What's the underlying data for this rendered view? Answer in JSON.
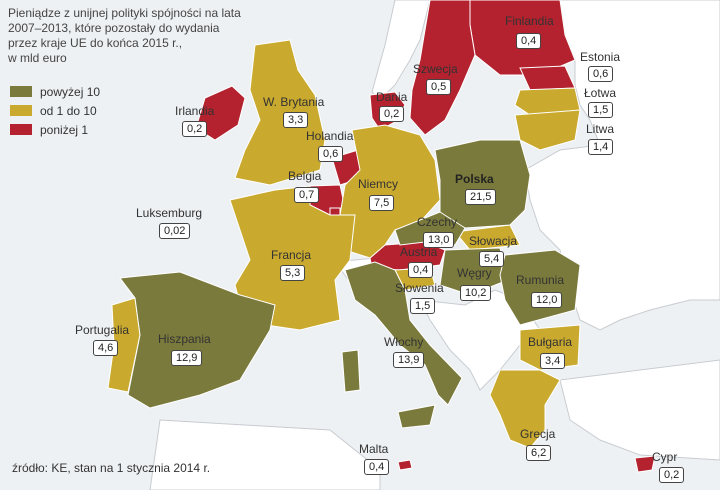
{
  "title_lines": [
    "Pieniądze z unijnej polityki spójności na lata",
    "2007–2013, które pozostały do wydania",
    "przez kraje UE do końca 2015 r.,",
    "w mld euro"
  ],
  "legend": [
    {
      "label": "powyżej 10",
      "color": "#7a7a3c"
    },
    {
      "label": "od 1 do 10",
      "color": "#c9a92e"
    },
    {
      "label": "poniżej 1",
      "color": "#b3222e"
    }
  ],
  "source": "źródło: KE, stan na 1 stycznia 2014 r.",
  "colors": {
    "sea": "#eef1f4",
    "non_eu": "#ffffff",
    "border": "#c8ccd0"
  },
  "countries": [
    {
      "id": "finlandia",
      "name": "Finlandia",
      "value": "0,4",
      "category": "poniżej 1"
    },
    {
      "id": "szwecja",
      "name": "Szwecja",
      "value": "0,5",
      "category": "poniżej 1"
    },
    {
      "id": "estonia",
      "name": "Estonia",
      "value": "0,6",
      "category": "poniżej 1"
    },
    {
      "id": "lotwa",
      "name": "Łotwa",
      "value": "1,5",
      "category": "od 1 do 10"
    },
    {
      "id": "litwa",
      "name": "Litwa",
      "value": "1,4",
      "category": "od 1 do 10"
    },
    {
      "id": "irlandia",
      "name": "Irlandia",
      "value": "0,2",
      "category": "poniżej 1"
    },
    {
      "id": "wbrytania",
      "name": "W. Brytania",
      "value": "3,3",
      "category": "od 1 do 10"
    },
    {
      "id": "dania",
      "name": "Dania",
      "value": "0,2",
      "category": "poniżej 1"
    },
    {
      "id": "holandia",
      "name": "Holandia",
      "value": "0,6",
      "category": "poniżej 1"
    },
    {
      "id": "belgia",
      "name": "Belgia",
      "value": "0,7",
      "category": "poniżej 1"
    },
    {
      "id": "niemcy",
      "name": "Niemcy",
      "value": "7,5",
      "category": "od 1 do 10"
    },
    {
      "id": "polska",
      "name": "Polska",
      "value": "21,5",
      "category": "powyżej 10"
    },
    {
      "id": "luksemburg",
      "name": "Luksemburg",
      "value": "0,02",
      "category": "poniżej 1"
    },
    {
      "id": "czechy",
      "name": "Czechy",
      "value": "13,0",
      "category": "powyżej 10"
    },
    {
      "id": "slowacja",
      "name": "Słowacja",
      "value": "5,4",
      "category": "od 1 do 10"
    },
    {
      "id": "austria",
      "name": "Austria",
      "value": "0,4",
      "category": "poniżej 1"
    },
    {
      "id": "wegry",
      "name": "Węgry",
      "value": "10,2",
      "category": "powyżej 10"
    },
    {
      "id": "francja",
      "name": "Francja",
      "value": "5,3",
      "category": "od 1 do 10"
    },
    {
      "id": "slowenia",
      "name": "Słowenia",
      "value": "1,5",
      "category": "od 1 do 10"
    },
    {
      "id": "rumunia",
      "name": "Rumunia",
      "value": "12,0",
      "category": "powyżej 10"
    },
    {
      "id": "portugalia",
      "name": "Portugalia",
      "value": "4,6",
      "category": "od 1 do 10"
    },
    {
      "id": "hiszpania",
      "name": "Hiszpania",
      "value": "12,9",
      "category": "powyżej 10"
    },
    {
      "id": "wlochy",
      "name": "Włochy",
      "value": "13,9",
      "category": "powyżej 10"
    },
    {
      "id": "bulgaria",
      "name": "Bułgaria",
      "value": "3,4",
      "category": "od 1 do 10"
    },
    {
      "id": "grecja",
      "name": "Grecja",
      "value": "6,2",
      "category": "od 1 do 10"
    },
    {
      "id": "malta",
      "name": "Malta",
      "value": "0,4",
      "category": "poniżej 1"
    },
    {
      "id": "cypr",
      "name": "Cypr",
      "value": "0,2",
      "category": "poniżej 1"
    }
  ]
}
